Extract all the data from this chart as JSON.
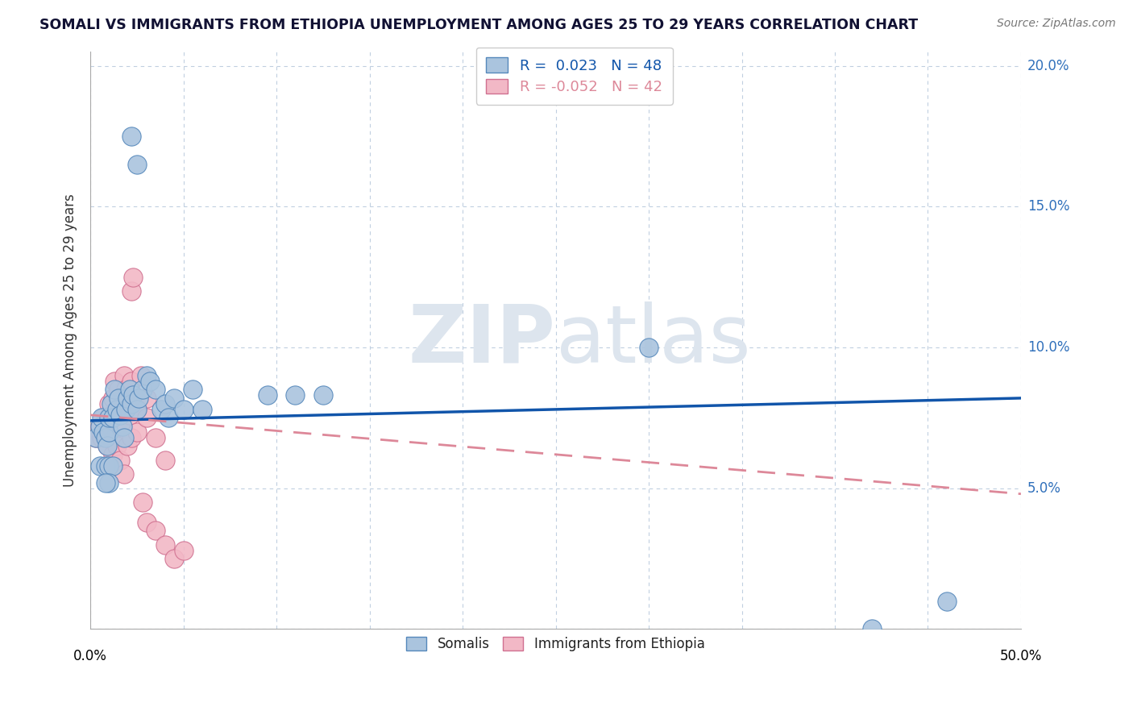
{
  "title": "SOMALI VS IMMIGRANTS FROM ETHIOPIA UNEMPLOYMENT AMONG AGES 25 TO 29 YEARS CORRELATION CHART",
  "source": "Source: ZipAtlas.com",
  "ylabel": "Unemployment Among Ages 25 to 29 years",
  "xlim": [
    0.0,
    0.5
  ],
  "ylim": [
    0.0,
    0.205
  ],
  "somali_R": 0.023,
  "somali_N": 48,
  "ethiopia_R": -0.052,
  "ethiopia_N": 42,
  "somali_color": "#aac4de",
  "ethiopia_color": "#f2b8c6",
  "somali_edge_color": "#5588bb",
  "ethiopia_edge_color": "#d07090",
  "somali_line_color": "#1155aa",
  "ethiopia_line_color": "#dd8899",
  "watermark_color": "#dde5ee",
  "background_color": "#ffffff",
  "grid_color": "#c0cfe0",
  "somali_x": [
    0.003,
    0.005,
    0.006,
    0.007,
    0.008,
    0.009,
    0.01,
    0.01,
    0.011,
    0.012,
    0.013,
    0.014,
    0.015,
    0.016,
    0.017,
    0.018,
    0.019,
    0.02,
    0.021,
    0.022,
    0.023,
    0.025,
    0.026,
    0.028,
    0.03,
    0.032,
    0.035,
    0.038,
    0.04,
    0.042,
    0.045,
    0.05,
    0.055,
    0.06,
    0.022,
    0.025,
    0.095,
    0.11,
    0.125,
    0.3,
    0.005,
    0.008,
    0.01,
    0.012,
    0.42,
    0.01,
    0.008,
    0.46
  ],
  "somali_y": [
    0.068,
    0.072,
    0.075,
    0.07,
    0.068,
    0.065,
    0.07,
    0.075,
    0.08,
    0.075,
    0.085,
    0.078,
    0.082,
    0.076,
    0.072,
    0.068,
    0.078,
    0.082,
    0.085,
    0.08,
    0.083,
    0.078,
    0.082,
    0.085,
    0.09,
    0.088,
    0.085,
    0.078,
    0.08,
    0.075,
    0.082,
    0.078,
    0.085,
    0.078,
    0.175,
    0.165,
    0.083,
    0.083,
    0.083,
    0.1,
    0.058,
    0.058,
    0.058,
    0.058,
    0.0,
    0.052,
    0.052,
    0.01
  ],
  "ethiopia_x": [
    0.003,
    0.005,
    0.006,
    0.007,
    0.008,
    0.009,
    0.01,
    0.011,
    0.012,
    0.013,
    0.014,
    0.015,
    0.016,
    0.017,
    0.018,
    0.019,
    0.02,
    0.021,
    0.022,
    0.023,
    0.025,
    0.027,
    0.03,
    0.022,
    0.023,
    0.028,
    0.03,
    0.035,
    0.04,
    0.045,
    0.05,
    0.01,
    0.012,
    0.014,
    0.016,
    0.018,
    0.02,
    0.022,
    0.025,
    0.03,
    0.035,
    0.04
  ],
  "ethiopia_y": [
    0.068,
    0.072,
    0.068,
    0.075,
    0.07,
    0.065,
    0.08,
    0.076,
    0.082,
    0.088,
    0.078,
    0.085,
    0.072,
    0.078,
    0.09,
    0.085,
    0.082,
    0.076,
    0.088,
    0.083,
    0.078,
    0.09,
    0.082,
    0.12,
    0.125,
    0.045,
    0.038,
    0.035,
    0.03,
    0.025,
    0.028,
    0.058,
    0.062,
    0.065,
    0.06,
    0.055,
    0.065,
    0.068,
    0.07,
    0.075,
    0.068,
    0.06
  ],
  "somali_line_x": [
    0.0,
    0.5
  ],
  "somali_line_y": [
    0.074,
    0.082
  ],
  "ethiopia_line_x": [
    0.0,
    0.5
  ],
  "ethiopia_line_y": [
    0.076,
    0.048
  ]
}
